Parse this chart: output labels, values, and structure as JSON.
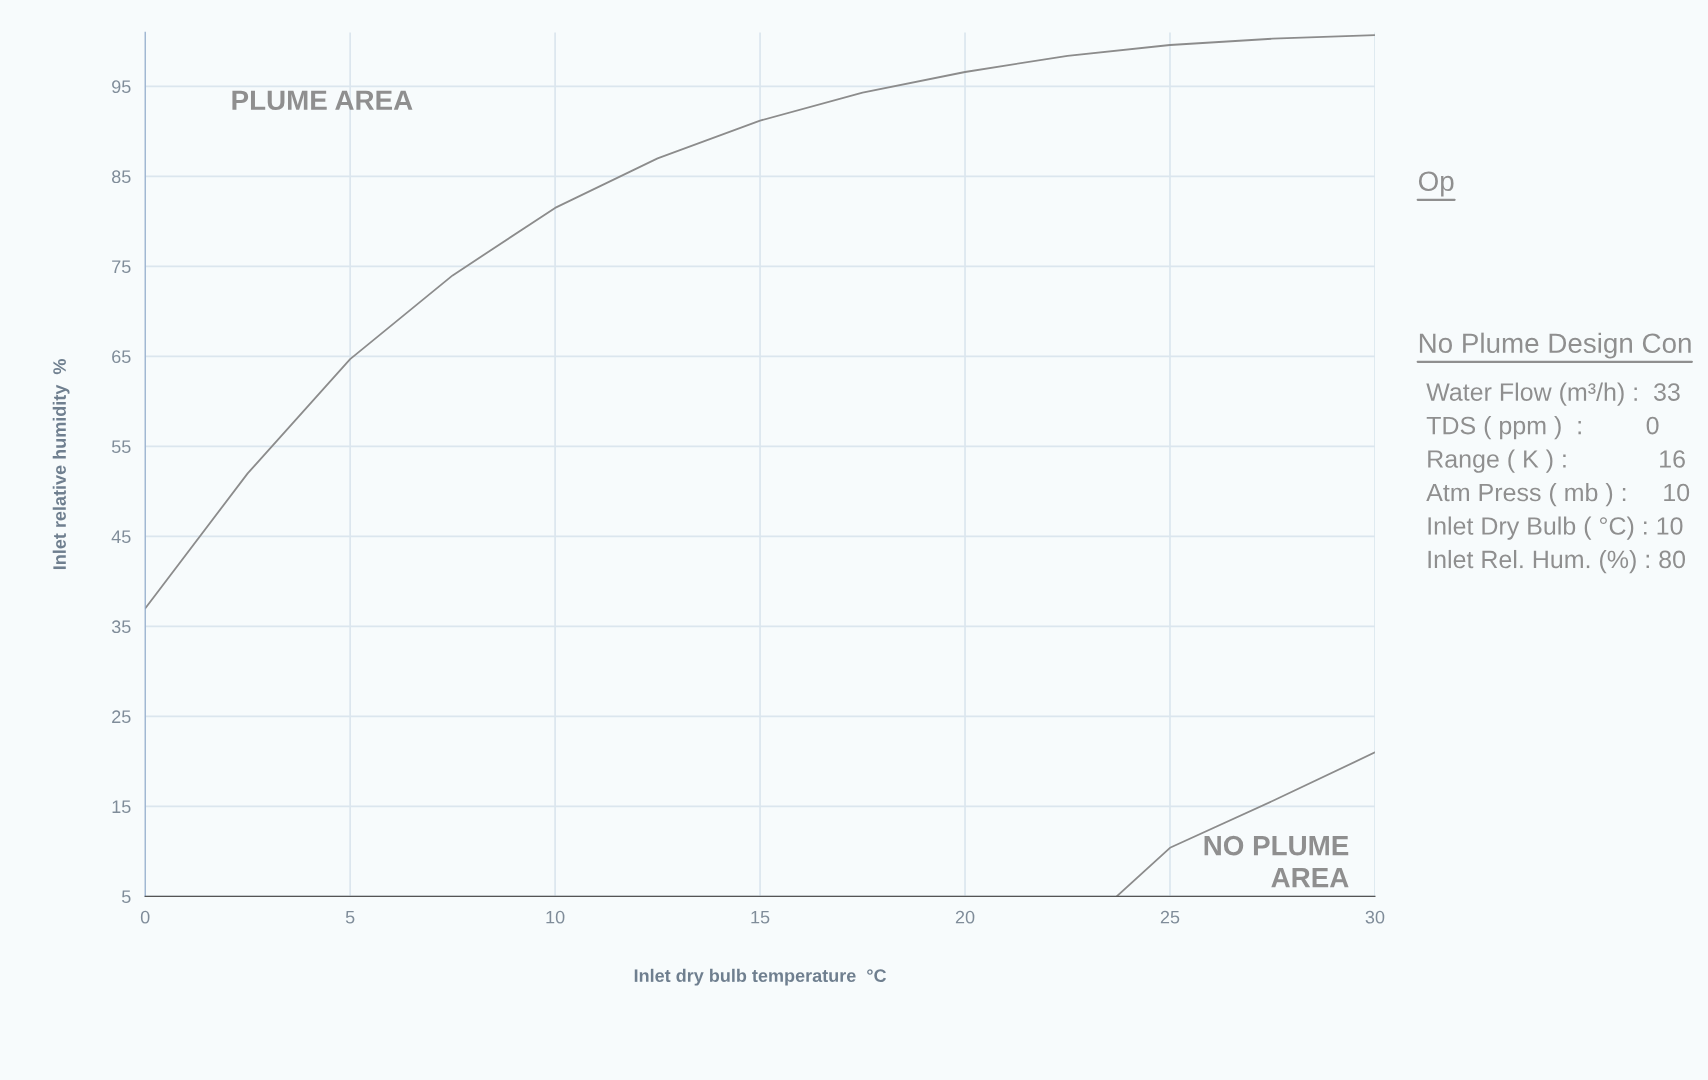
{
  "chart_data": {
    "type": "line",
    "xlabel": "Inlet dry bulb temperature  °C",
    "ylabel": "Inlet relative humidity  %",
    "xlim": [
      0,
      30
    ],
    "xticks": [
      0,
      5,
      10,
      15,
      20,
      25,
      30
    ],
    "ylim": [
      5,
      101
    ],
    "yticks": [
      5,
      15,
      25,
      35,
      45,
      55,
      65,
      75,
      85,
      95
    ],
    "grid": true,
    "legend": false,
    "marker": "none",
    "line_style": "solid",
    "series": [
      {
        "color": "#8c8c8c",
        "x": [
          0,
          2.5,
          5,
          7.5,
          10,
          12.5,
          15,
          17.5,
          20,
          22.5,
          25,
          27.5,
          30
        ],
        "values": [
          37,
          52,
          64.7,
          74,
          81.5,
          87,
          91.2,
          94.3,
          96.6,
          98.4,
          99.6,
          100.3,
          100.7
        ]
      },
      {
        "color": "#8c8c8c",
        "x": [
          23.7,
          25,
          27.5,
          30
        ],
        "values": [
          5,
          10.4,
          15.6,
          21
        ]
      }
    ],
    "annotations": [
      "PLUME AREA",
      "NO PLUME\nAREA",
      "Op",
      "No Plume Design Con",
      "Water Flow (m³/h) :  33",
      "TDS ( ppm )  :         0",
      "Range ( K ) :             16",
      "Atm Press ( mb ) :     10",
      "Inlet Dry Bulb ( °C) : 10",
      "Inlet Rel. Hum. (%) : 80"
    ]
  }
}
